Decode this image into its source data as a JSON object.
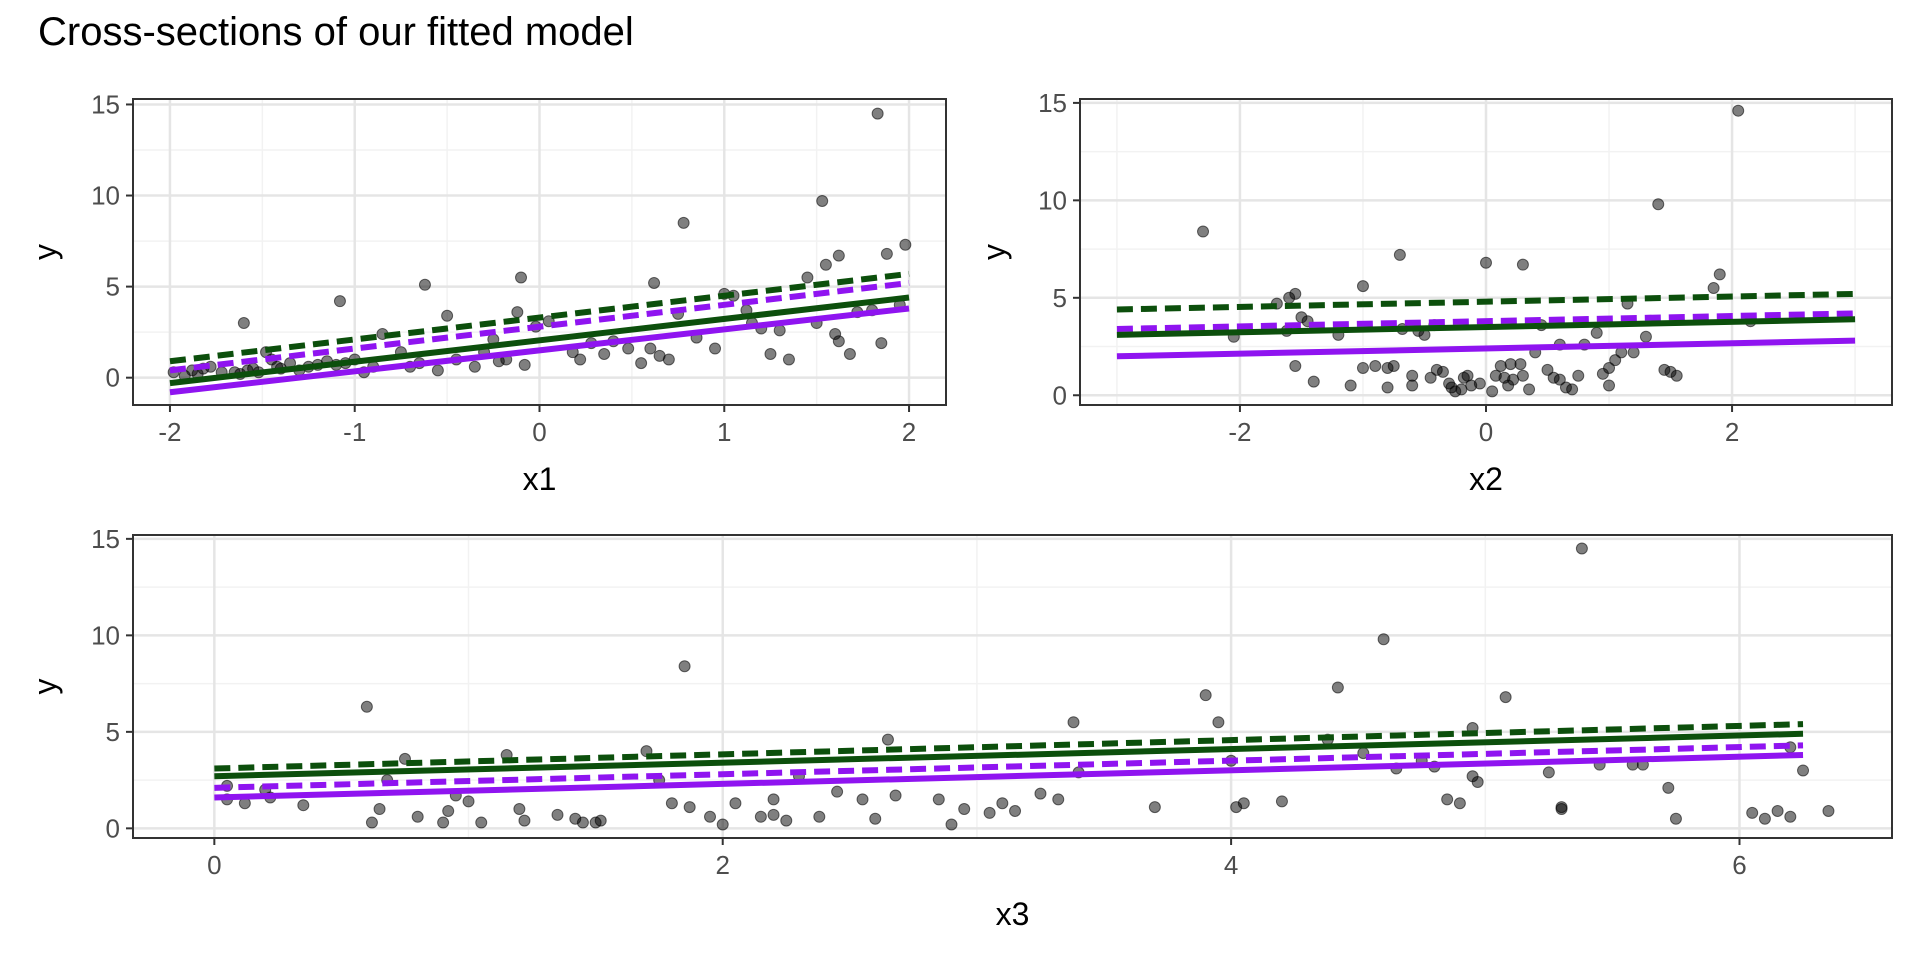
{
  "title": "Cross-sections of our fitted model",
  "colors": {
    "panel_border": "#333333",
    "grid_major": "#e5e5e5",
    "grid_minor": "#f2f2f2",
    "points": "#000000",
    "green_line": "#0c4f0c",
    "purple_line": "#8f14f0"
  },
  "chart_data": [
    {
      "type": "scatter",
      "xlabel": "x1",
      "ylabel": "y",
      "xlim": [
        -2.2,
        2.2
      ],
      "ylim": [
        -1.5,
        15.3
      ],
      "xticks": [
        -2,
        -1,
        0,
        1,
        2
      ],
      "xtick_labels": [
        "-2",
        "-1",
        "0",
        "1",
        "2"
      ],
      "yticks": [
        0,
        5,
        10,
        15
      ],
      "ytick_labels": [
        "0",
        "5",
        "10",
        "15"
      ],
      "points": [
        [
          -1.98,
          0.3
        ],
        [
          -1.92,
          0.1
        ],
        [
          -1.88,
          0.4
        ],
        [
          -1.85,
          0.2
        ],
        [
          -1.82,
          0.5
        ],
        [
          -1.78,
          0.6
        ],
        [
          -1.72,
          0.3
        ],
        [
          -1.65,
          0.3
        ],
        [
          -1.62,
          0.2
        ],
        [
          -1.58,
          0.4
        ],
        [
          -1.55,
          0.5
        ],
        [
          -1.52,
          0.3
        ],
        [
          -1.48,
          1.4
        ],
        [
          -1.45,
          1.0
        ],
        [
          -1.42,
          0.6
        ],
        [
          -1.4,
          0.5
        ],
        [
          -1.35,
          0.8
        ],
        [
          -1.3,
          0.4
        ],
        [
          -1.25,
          0.6
        ],
        [
          -1.2,
          0.7
        ],
        [
          -1.15,
          0.9
        ],
        [
          -1.1,
          0.7
        ],
        [
          -1.05,
          0.8
        ],
        [
          -1.0,
          1.0
        ],
        [
          -0.95,
          0.3
        ],
        [
          -0.9,
          0.6
        ],
        [
          -0.85,
          2.4
        ],
        [
          -0.75,
          1.4
        ],
        [
          -0.7,
          0.6
        ],
        [
          -0.65,
          0.8
        ],
        [
          -0.55,
          0.4
        ],
        [
          -0.5,
          3.4
        ],
        [
          -0.45,
          1.0
        ],
        [
          -0.35,
          0.6
        ],
        [
          -0.3,
          1.4
        ],
        [
          -0.25,
          2.1
        ],
        [
          -0.22,
          0.9
        ],
        [
          -0.18,
          1.0
        ],
        [
          -0.12,
          3.6
        ],
        [
          -0.08,
          0.7
        ],
        [
          -0.02,
          2.8
        ],
        [
          0.05,
          3.1
        ],
        [
          0.18,
          1.4
        ],
        [
          0.22,
          1.0
        ],
        [
          0.28,
          1.9
        ],
        [
          0.35,
          1.3
        ],
        [
          0.4,
          2.0
        ],
        [
          0.48,
          1.6
        ],
        [
          0.55,
          0.8
        ],
        [
          0.6,
          1.6
        ],
        [
          0.65,
          1.2
        ],
        [
          0.7,
          1.0
        ],
        [
          0.75,
          3.5
        ],
        [
          0.85,
          2.2
        ],
        [
          0.95,
          1.6
        ],
        [
          1.0,
          4.6
        ],
        [
          1.05,
          4.5
        ],
        [
          1.12,
          3.7
        ],
        [
          1.15,
          3.0
        ],
        [
          1.2,
          2.7
        ],
        [
          1.25,
          1.3
        ],
        [
          1.3,
          2.6
        ],
        [
          1.35,
          1.0
        ],
        [
          1.45,
          5.5
        ],
        [
          1.5,
          3.0
        ],
        [
          1.55,
          6.2
        ],
        [
          1.6,
          2.4
        ],
        [
          1.62,
          2.0
        ],
        [
          1.68,
          1.3
        ],
        [
          1.72,
          3.6
        ],
        [
          1.8,
          3.7
        ],
        [
          1.85,
          1.9
        ],
        [
          1.88,
          6.8
        ],
        [
          1.95,
          4.0
        ],
        [
          1.98,
          7.3
        ],
        [
          -1.6,
          3.0
        ],
        [
          -1.08,
          4.2
        ],
        [
          -0.62,
          5.1
        ],
        [
          -0.1,
          5.5
        ],
        [
          0.62,
          5.2
        ],
        [
          0.78,
          8.5
        ],
        [
          1.53,
          9.7
        ],
        [
          1.62,
          6.7
        ],
        [
          1.83,
          14.5
        ]
      ],
      "lines": [
        {
          "name": "green-dashed",
          "style": "dashed",
          "color": "green",
          "x": [
            -2,
            2
          ],
          "y": [
            0.9,
            5.7
          ]
        },
        {
          "name": "purple-dashed",
          "style": "dashed",
          "color": "purple",
          "x": [
            -2,
            2
          ],
          "y": [
            0.4,
            5.2
          ]
        },
        {
          "name": "green-solid",
          "style": "solid",
          "color": "green",
          "x": [
            -2,
            2
          ],
          "y": [
            -0.3,
            4.4
          ]
        },
        {
          "name": "purple-solid",
          "style": "solid",
          "color": "purple",
          "x": [
            -2,
            2
          ],
          "y": [
            -0.8,
            3.8
          ]
        }
      ]
    },
    {
      "type": "scatter",
      "xlabel": "x2",
      "ylabel": "y",
      "xlim": [
        -3.3,
        3.3
      ],
      "ylim": [
        -0.5,
        15.2
      ],
      "xticks": [
        -2,
        0,
        2
      ],
      "xtick_labels": [
        "-2",
        "0",
        "2"
      ],
      "yticks": [
        0,
        5,
        10,
        15
      ],
      "ytick_labels": [
        "0",
        "5",
        "10",
        "15"
      ],
      "points": [
        [
          -2.3,
          8.4
        ],
        [
          -2.05,
          3.0
        ],
        [
          -1.7,
          4.7
        ],
        [
          -1.62,
          3.3
        ],
        [
          -1.6,
          5.0
        ],
        [
          -1.55,
          5.2
        ],
        [
          -1.5,
          4.0
        ],
        [
          -1.45,
          3.8
        ],
        [
          -1.4,
          0.7
        ],
        [
          -1.2,
          3.1
        ],
        [
          -1.0,
          5.6
        ],
        [
          -0.9,
          1.5
        ],
        [
          -0.8,
          1.4
        ],
        [
          -0.7,
          7.2
        ],
        [
          -0.68,
          3.4
        ],
        [
          -0.55,
          3.3
        ],
        [
          -0.5,
          3.1
        ],
        [
          -0.45,
          0.9
        ],
        [
          -0.42,
          3.6
        ],
        [
          -0.35,
          1.2
        ],
        [
          -0.3,
          0.6
        ],
        [
          -0.28,
          0.4
        ],
        [
          -0.25,
          0.2
        ],
        [
          -0.2,
          0.3
        ],
        [
          -0.18,
          0.9
        ],
        [
          -0.12,
          0.5
        ],
        [
          -0.05,
          0.6
        ],
        [
          0.0,
          6.8
        ],
        [
          0.05,
          0.2
        ],
        [
          0.08,
          1.0
        ],
        [
          0.12,
          1.5
        ],
        [
          0.18,
          0.5
        ],
        [
          0.22,
          0.8
        ],
        [
          0.28,
          1.6
        ],
        [
          0.3,
          6.7
        ],
        [
          0.35,
          0.3
        ],
        [
          0.4,
          2.2
        ],
        [
          0.45,
          3.6
        ],
        [
          0.5,
          1.3
        ],
        [
          0.55,
          0.9
        ],
        [
          0.6,
          2.6
        ],
        [
          0.65,
          0.4
        ],
        [
          0.7,
          0.3
        ],
        [
          0.75,
          1.0
        ],
        [
          0.8,
          2.6
        ],
        [
          0.9,
          3.2
        ],
        [
          0.95,
          1.1
        ],
        [
          1.0,
          0.5
        ],
        [
          1.05,
          1.8
        ],
        [
          1.1,
          2.2
        ],
        [
          1.15,
          4.7
        ],
        [
          1.2,
          2.2
        ],
        [
          1.3,
          3.0
        ],
        [
          1.4,
          9.8
        ],
        [
          1.45,
          1.3
        ],
        [
          1.5,
          1.2
        ],
        [
          1.55,
          1.0
        ],
        [
          1.85,
          5.5
        ],
        [
          1.9,
          6.2
        ],
        [
          2.05,
          14.6
        ],
        [
          2.15,
          3.8
        ],
        [
          -1.0,
          1.4
        ],
        [
          -1.1,
          0.5
        ],
        [
          -0.8,
          0.4
        ],
        [
          -0.6,
          0.5
        ],
        [
          -0.4,
          1.3
        ],
        [
          -0.15,
          1.0
        ],
        [
          0.15,
          0.9
        ],
        [
          0.3,
          1.0
        ],
        [
          0.6,
          0.8
        ],
        [
          -1.55,
          1.5
        ],
        [
          -0.75,
          1.5
        ],
        [
          -0.6,
          1.0
        ],
        [
          0.2,
          1.6
        ],
        [
          1.0,
          1.4
        ]
      ],
      "lines": [
        {
          "name": "green-dashed",
          "style": "dashed",
          "color": "green",
          "x": [
            -3,
            3
          ],
          "y": [
            4.4,
            5.2
          ]
        },
        {
          "name": "purple-dashed",
          "style": "dashed",
          "color": "purple",
          "x": [
            -3,
            3
          ],
          "y": [
            3.4,
            4.2
          ]
        },
        {
          "name": "green-solid",
          "style": "solid",
          "color": "green",
          "x": [
            -3,
            3
          ],
          "y": [
            3.1,
            3.9
          ]
        },
        {
          "name": "purple-solid",
          "style": "solid",
          "color": "purple",
          "x": [
            -3,
            3
          ],
          "y": [
            2.0,
            2.8
          ]
        }
      ]
    },
    {
      "type": "scatter",
      "xlabel": "x3",
      "ylabel": "y",
      "xlim": [
        -0.32,
        6.6
      ],
      "ylim": [
        -0.5,
        15.2
      ],
      "xticks": [
        0,
        2,
        4,
        6
      ],
      "xtick_labels": [
        "0",
        "2",
        "4",
        "6"
      ],
      "yticks": [
        0,
        5,
        10,
        15
      ],
      "ytick_labels": [
        "0",
        "5",
        "10",
        "15"
      ],
      "points": [
        [
          0.05,
          2.2
        ],
        [
          0.05,
          1.5
        ],
        [
          0.12,
          1.3
        ],
        [
          0.2,
          2.0
        ],
        [
          0.22,
          1.6
        ],
        [
          0.35,
          1.2
        ],
        [
          0.6,
          6.3
        ],
        [
          0.62,
          0.3
        ],
        [
          0.65,
          1.0
        ],
        [
          0.68,
          2.5
        ],
        [
          0.75,
          3.6
        ],
        [
          0.8,
          0.6
        ],
        [
          0.9,
          0.3
        ],
        [
          0.92,
          0.9
        ],
        [
          0.95,
          1.7
        ],
        [
          1.0,
          1.4
        ],
        [
          1.05,
          0.3
        ],
        [
          1.15,
          3.8
        ],
        [
          1.2,
          1.0
        ],
        [
          1.22,
          0.4
        ],
        [
          1.35,
          0.7
        ],
        [
          1.42,
          0.5
        ],
        [
          1.45,
          0.3
        ],
        [
          1.5,
          0.3
        ],
        [
          1.52,
          0.4
        ],
        [
          1.7,
          4.0
        ],
        [
          1.75,
          2.5
        ],
        [
          1.8,
          1.3
        ],
        [
          1.85,
          8.4
        ],
        [
          1.87,
          1.1
        ],
        [
          1.95,
          0.6
        ],
        [
          2.0,
          0.2
        ],
        [
          2.05,
          1.3
        ],
        [
          2.15,
          0.6
        ],
        [
          2.2,
          1.5
        ],
        [
          2.25,
          0.4
        ],
        [
          2.3,
          2.7
        ],
        [
          2.38,
          0.6
        ],
        [
          2.45,
          1.9
        ],
        [
          2.55,
          1.5
        ],
        [
          2.65,
          4.6
        ],
        [
          2.68,
          1.7
        ],
        [
          2.85,
          1.5
        ],
        [
          2.9,
          0.2
        ],
        [
          2.95,
          1.0
        ],
        [
          3.05,
          0.8
        ],
        [
          3.1,
          1.3
        ],
        [
          3.15,
          0.9
        ],
        [
          3.25,
          1.8
        ],
        [
          3.32,
          1.5
        ],
        [
          3.38,
          5.5
        ],
        [
          3.4,
          2.9
        ],
        [
          3.7,
          1.1
        ],
        [
          3.9,
          6.9
        ],
        [
          3.95,
          5.5
        ],
        [
          4.0,
          3.5
        ],
        [
          4.02,
          1.1
        ],
        [
          4.05,
          1.3
        ],
        [
          4.2,
          1.4
        ],
        [
          4.38,
          4.6
        ],
        [
          4.42,
          7.3
        ],
        [
          4.52,
          3.9
        ],
        [
          4.6,
          9.8
        ],
        [
          4.65,
          3.1
        ],
        [
          4.75,
          3.5
        ],
        [
          4.8,
          3.2
        ],
        [
          4.85,
          1.5
        ],
        [
          4.9,
          1.3
        ],
        [
          4.95,
          5.2
        ],
        [
          4.97,
          2.4
        ],
        [
          5.08,
          6.8
        ],
        [
          5.25,
          2.9
        ],
        [
          5.3,
          1.1
        ],
        [
          5.38,
          14.5
        ],
        [
          5.45,
          3.3
        ],
        [
          5.58,
          3.3
        ],
        [
          5.62,
          3.3
        ],
        [
          5.72,
          2.1
        ],
        [
          5.75,
          0.5
        ],
        [
          6.05,
          0.8
        ],
        [
          6.1,
          0.5
        ],
        [
          6.15,
          0.9
        ],
        [
          6.2,
          0.6
        ],
        [
          6.25,
          3.0
        ],
        [
          6.35,
          0.9
        ],
        [
          6.2,
          4.2
        ],
        [
          5.3,
          1.0
        ],
        [
          4.95,
          2.7
        ],
        [
          2.6,
          0.5
        ],
        [
          2.2,
          0.7
        ]
      ],
      "lines": [
        {
          "name": "green-dashed",
          "style": "dashed",
          "color": "green",
          "x": [
            0,
            6.25
          ],
          "y": [
            3.1,
            5.4
          ]
        },
        {
          "name": "purple-dashed",
          "style": "dashed",
          "color": "purple",
          "x": [
            0,
            6.25
          ],
          "y": [
            2.1,
            4.3
          ]
        },
        {
          "name": "green-solid",
          "style": "solid",
          "color": "green",
          "x": [
            0,
            6.25
          ],
          "y": [
            2.7,
            4.9
          ]
        },
        {
          "name": "purple-solid",
          "style": "solid",
          "color": "purple",
          "x": [
            0,
            6.25
          ],
          "y": [
            1.6,
            3.8
          ]
        }
      ]
    }
  ]
}
